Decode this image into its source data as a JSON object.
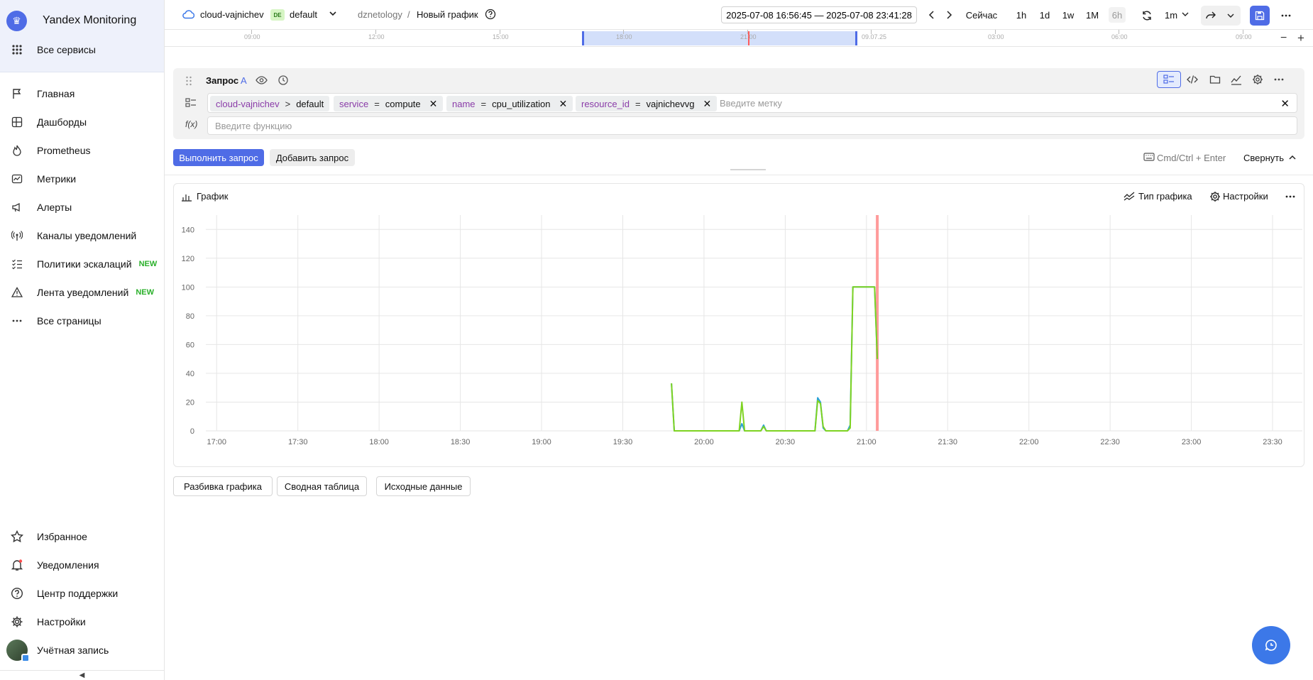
{
  "app": {
    "title": "Yandex Monitoring"
  },
  "sidebar": {
    "all_services": "Все сервисы",
    "items": [
      {
        "label": "Главная",
        "icon": "flag-icon"
      },
      {
        "label": "Дашборды",
        "icon": "dashboard-icon"
      },
      {
        "label": "Prometheus",
        "icon": "fire-icon"
      },
      {
        "label": "Метрики",
        "icon": "chart-icon"
      },
      {
        "label": "Алерты",
        "icon": "megaphone-icon"
      },
      {
        "label": "Каналы уведомлений",
        "icon": "antenna-icon"
      },
      {
        "label": "Политики эскалаций",
        "icon": "checklist-icon",
        "badge": "NEW"
      },
      {
        "label": "Лента уведомлений",
        "icon": "warning-icon",
        "badge": "NEW"
      },
      {
        "label": "Все страницы",
        "icon": "ellipsis-icon"
      }
    ],
    "bottom": [
      {
        "label": "Избранное",
        "icon": "star-icon"
      },
      {
        "label": "Уведомления",
        "icon": "bell-icon"
      },
      {
        "label": "Центр поддержки",
        "icon": "help-icon"
      },
      {
        "label": "Настройки",
        "icon": "gear-icon"
      },
      {
        "label": "Учётная запись",
        "icon": "avatar"
      }
    ]
  },
  "header": {
    "cloud": "cloud-vajnichev",
    "folder_badge": "DE",
    "folder": "default",
    "breadcrumb_parent": "dznetology",
    "breadcrumb_sep": "/",
    "page_title": "Новый график",
    "time_range": "2025-07-08 16:56:45 — 2025-07-08 23:41:28",
    "now": "Сейчас",
    "presets": [
      "1h",
      "1d",
      "1w",
      "1M",
      "6h"
    ],
    "refresh_interval": "1m"
  },
  "ruler": {
    "ticks": [
      "09:00",
      "12:00",
      "15:00",
      "18:00",
      "21:00",
      "09.07.25",
      "03:00",
      "06:00",
      "09:00"
    ]
  },
  "query": {
    "title": "Запрос",
    "letter": "A",
    "selector_cloud": "cloud-vajnichev",
    "selector_arrow": ">",
    "selector_folder": "default",
    "labels": [
      {
        "key": "service",
        "op": "=",
        "value": "compute"
      },
      {
        "key": "name",
        "op": "=",
        "value": "cpu_utilization"
      },
      {
        "key": "resource_id",
        "op": "=",
        "value": "vajnichevvg"
      }
    ],
    "label_placeholder": "Введите метку",
    "function_placeholder": "Введите функцию",
    "run_button": "Выполнить запрос",
    "add_button": "Добавить запрос",
    "shortcut_hint": "Cmd/Ctrl + Enter",
    "collapse": "Свернуть"
  },
  "chart": {
    "title": "График",
    "type_button": "Тип графика",
    "settings_button": "Настройки"
  },
  "chart_data": {
    "type": "line",
    "x_ticks": [
      "17:00",
      "17:30",
      "18:00",
      "18:30",
      "19:00",
      "19:30",
      "20:00",
      "20:30",
      "21:00",
      "21:30",
      "22:00",
      "22:30",
      "23:00",
      "23:30"
    ],
    "y_ticks": [
      0,
      20,
      40,
      60,
      80,
      100,
      120,
      140
    ],
    "ylim": [
      0,
      150
    ],
    "xlim_minutes": [
      "16:56",
      "23:41"
    ],
    "now_marker": "21:04",
    "grid": true,
    "series": [
      {
        "color": "#2aa1d8",
        "points": [
          [
            "19:48",
            33
          ],
          [
            "19:49",
            0
          ],
          [
            "20:13",
            0
          ],
          [
            "20:14",
            5
          ],
          [
            "20:15",
            0
          ],
          [
            "20:21",
            0
          ],
          [
            "20:22",
            4
          ],
          [
            "20:23",
            0
          ],
          [
            "20:41",
            0
          ],
          [
            "20:42",
            23
          ],
          [
            "20:43",
            20
          ],
          [
            "20:44",
            2
          ],
          [
            "20:45",
            0
          ],
          [
            "20:53",
            0
          ],
          [
            "20:54",
            4
          ],
          [
            "20:55",
            100
          ],
          [
            "21:03",
            100
          ],
          [
            "21:04",
            50
          ]
        ]
      },
      {
        "color": "#7ed321",
        "points": [
          [
            "19:48",
            33
          ],
          [
            "19:49",
            0
          ],
          [
            "20:13",
            0
          ],
          [
            "20:14",
            20
          ],
          [
            "20:15",
            0
          ],
          [
            "20:21",
            0
          ],
          [
            "20:22",
            3
          ],
          [
            "20:23",
            0
          ],
          [
            "20:41",
            0
          ],
          [
            "20:42",
            21
          ],
          [
            "20:43",
            19
          ],
          [
            "20:44",
            3
          ],
          [
            "20:45",
            0
          ],
          [
            "20:53",
            0
          ],
          [
            "20:54",
            2
          ],
          [
            "20:55",
            100
          ],
          [
            "21:03",
            100
          ],
          [
            "21:04",
            50
          ]
        ]
      }
    ]
  },
  "bottom_buttons": [
    "Разбивка графика",
    "Сводная таблица",
    "Исходные данные"
  ]
}
